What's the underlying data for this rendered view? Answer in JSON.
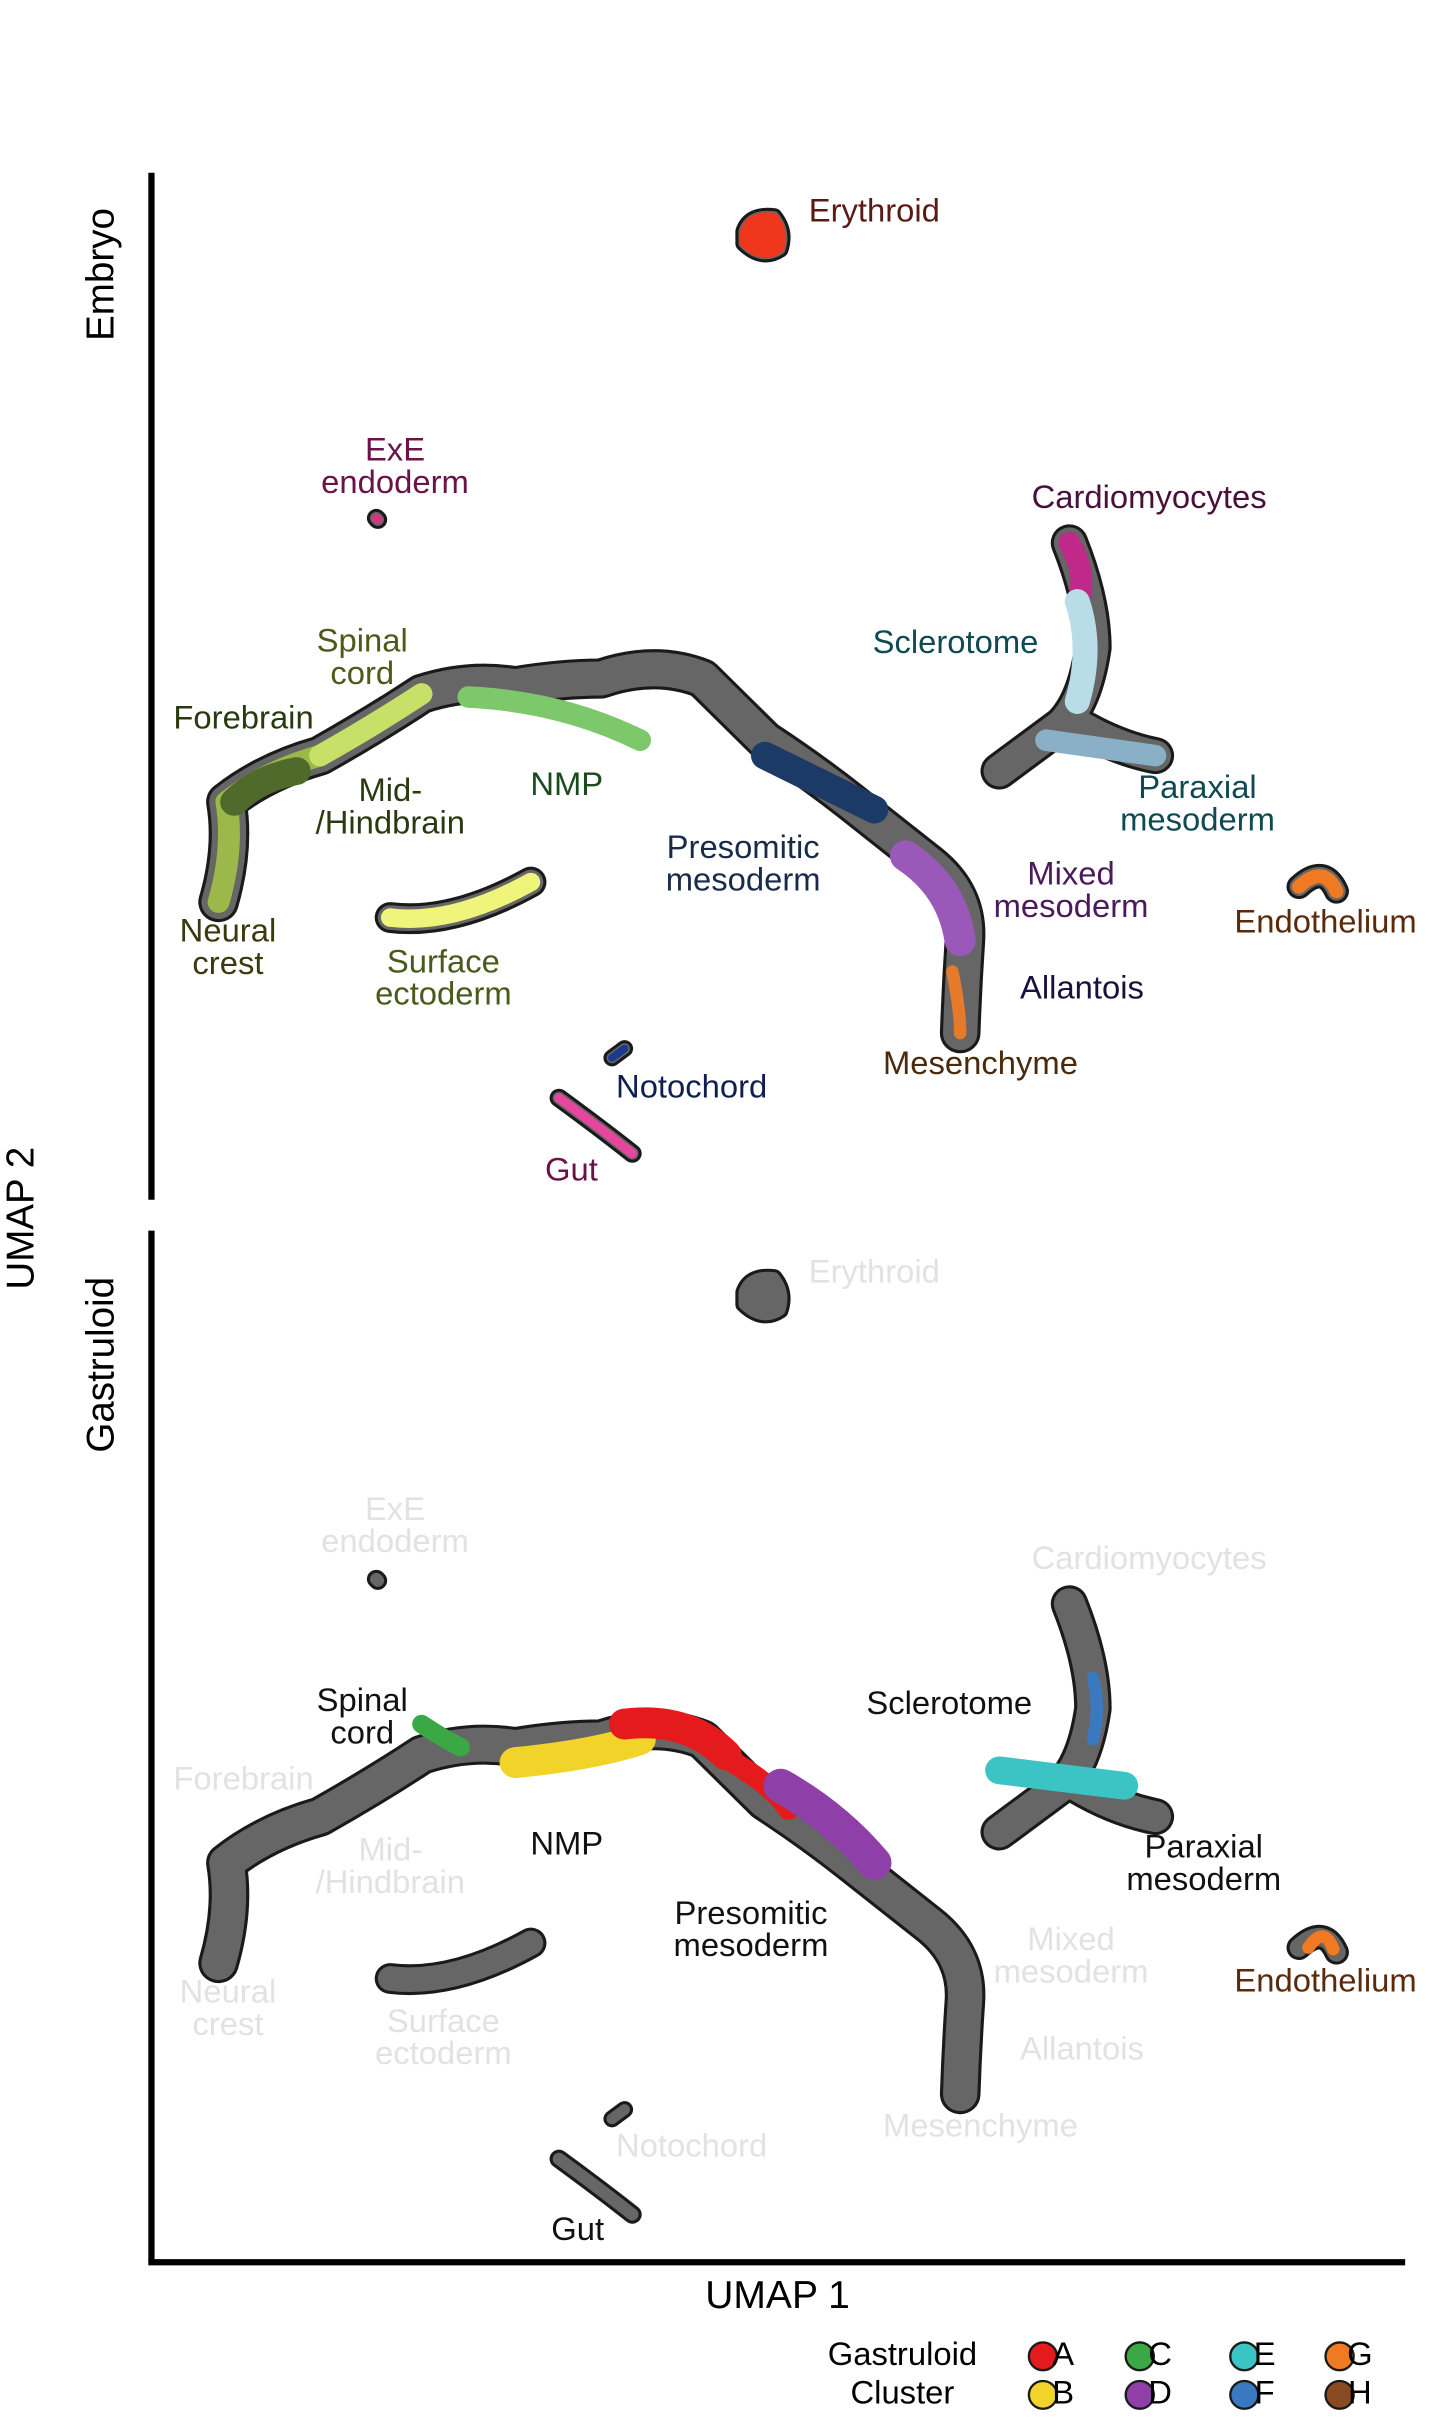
{
  "chart_data": {
    "type": "umap",
    "xlabel": "UMAP 1",
    "ylabel": "UMAP 2",
    "panels": [
      {
        "name": "Embryo",
        "labels": [
          {
            "lines": [
              "Erythroid"
            ],
            "color": "#5a1a14"
          },
          {
            "lines": [
              "ExE",
              "endoderm"
            ],
            "color": "#6b1248"
          },
          {
            "lines": [
              "Cardiomyocytes"
            ],
            "color": "#4a0f3a"
          },
          {
            "lines": [
              "Spinal",
              "cord"
            ],
            "color": "#4d5a1a"
          },
          {
            "lines": [
              "Sclerotome"
            ],
            "color": "#0f4a52"
          },
          {
            "lines": [
              "Forebrain"
            ],
            "color": "#2a3a10"
          },
          {
            "lines": [
              "Mid-",
              "/Hindbrain"
            ],
            "color": "#2a3a10"
          },
          {
            "lines": [
              "NMP"
            ],
            "color": "#1a4a20"
          },
          {
            "lines": [
              "Paraxial",
              "mesoderm"
            ],
            "color": "#0f4a52"
          },
          {
            "lines": [
              "Presomitic",
              "mesoderm"
            ],
            "color": "#1a2a4a"
          },
          {
            "lines": [
              "Mixed",
              "mesoderm"
            ],
            "color": "#4a1a5a"
          },
          {
            "lines": [
              "Endothelium"
            ],
            "color": "#5a2a0a"
          },
          {
            "lines": [
              "Neural",
              "crest"
            ],
            "color": "#3a3a10"
          },
          {
            "lines": [
              "Surface",
              "ectoderm"
            ],
            "color": "#4a5a1a"
          },
          {
            "lines": [
              "Allantois"
            ],
            "color": "#1a1040"
          },
          {
            "lines": [
              "Mesenchyme"
            ],
            "color": "#4a2a0a"
          },
          {
            "lines": [
              "Notochord"
            ],
            "color": "#0f2050"
          },
          {
            "lines": [
              "Gut"
            ],
            "color": "#6b1248"
          }
        ]
      },
      {
        "name": "Gastruloid",
        "labels": [
          {
            "lines": [
              "Erythroid"
            ],
            "color": "#e2e2e2"
          },
          {
            "lines": [
              "ExE",
              "endoderm"
            ],
            "color": "#e2e2e2"
          },
          {
            "lines": [
              "Cardiomyocytes"
            ],
            "color": "#e2e2e2"
          },
          {
            "lines": [
              "Spinal",
              "cord"
            ],
            "color": "#111111"
          },
          {
            "lines": [
              "Sclerotome"
            ],
            "color": "#111111"
          },
          {
            "lines": [
              "Forebrain"
            ],
            "color": "#e2e2e2"
          },
          {
            "lines": [
              "Mid-",
              "/Hindbrain"
            ],
            "color": "#e2e2e2"
          },
          {
            "lines": [
              "NMP"
            ],
            "color": "#111111"
          },
          {
            "lines": [
              "Paraxial",
              "mesoderm"
            ],
            "color": "#111111"
          },
          {
            "lines": [
              "Presomitic",
              "mesoderm"
            ],
            "color": "#111111"
          },
          {
            "lines": [
              "Mixed",
              "mesoderm"
            ],
            "color": "#e2e2e2"
          },
          {
            "lines": [
              "Endothelium"
            ],
            "color": "#5a2a0a"
          },
          {
            "lines": [
              "Neural",
              "crest"
            ],
            "color": "#e2e2e2"
          },
          {
            "lines": [
              "Surface",
              "ectoderm"
            ],
            "color": "#e2e2e2"
          },
          {
            "lines": [
              "Allantois"
            ],
            "color": "#e2e2e2"
          },
          {
            "lines": [
              "Mesenchyme"
            ],
            "color": "#e2e2e2"
          },
          {
            "lines": [
              "Notochord"
            ],
            "color": "#e2e2e2"
          },
          {
            "lines": [
              "Gut"
            ],
            "color": "#111111"
          }
        ]
      }
    ],
    "legend": {
      "title": [
        "Gastruloid",
        "Cluster"
      ],
      "items": [
        {
          "name": "A",
          "color": "#e41a1c"
        },
        {
          "name": "B",
          "color": "#f2d32a"
        },
        {
          "name": "C",
          "color": "#3aa845"
        },
        {
          "name": "D",
          "color": "#8e3fa8"
        },
        {
          "name": "E",
          "color": "#3cc4c4"
        },
        {
          "name": "F",
          "color": "#3a78c0"
        },
        {
          "name": "G",
          "color": "#f07a22"
        },
        {
          "name": "H",
          "color": "#8a4a22"
        }
      ]
    }
  }
}
